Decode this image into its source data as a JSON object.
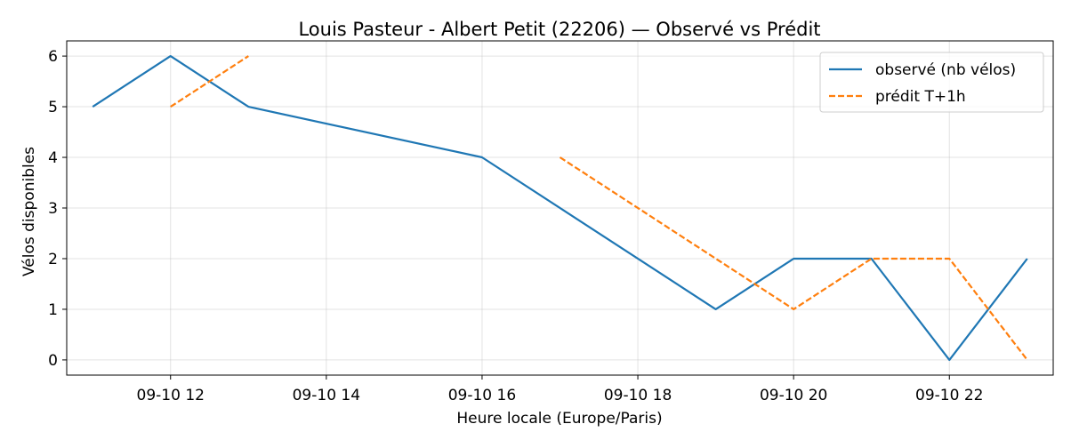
{
  "chart_data": {
    "type": "line",
    "title": "Louis Pasteur - Albert Petit (22206) — Observé vs Prédit",
    "xlabel": "Heure locale (Europe/Paris)",
    "ylabel": "Vélos disponibles",
    "x_ticks": [
      "09-10 12",
      "09-10 14",
      "09-10 16",
      "09-10 18",
      "09-10 20",
      "09-10 22"
    ],
    "y_ticks": [
      "0",
      "1",
      "2",
      "3",
      "4",
      "5",
      "6"
    ],
    "xlim": [
      "2024-09-10 10:40",
      "2024-09-10 23:20"
    ],
    "ylim": [
      -0.3,
      6.3
    ],
    "grid": true,
    "legend_position": "top-right",
    "series": [
      {
        "name": "observé (nb vélos)",
        "style": "solid",
        "color": "#1f77b4",
        "points": [
          {
            "x": "2024-09-10 11:00",
            "y": 5
          },
          {
            "x": "2024-09-10 12:00",
            "y": 6
          },
          {
            "x": "2024-09-10 13:00",
            "y": 5
          },
          {
            "x": "2024-09-10 16:00",
            "y": 4
          },
          {
            "x": "2024-09-10 19:00",
            "y": 1
          },
          {
            "x": "2024-09-10 20:00",
            "y": 2
          },
          {
            "x": "2024-09-10 21:00",
            "y": 2
          },
          {
            "x": "2024-09-10 22:00",
            "y": 0
          },
          {
            "x": "2024-09-10 23:00",
            "y": 2
          }
        ]
      },
      {
        "name": "prédit T+1h",
        "style": "dashed",
        "color": "#ff7f0e",
        "segments": [
          [
            {
              "x": "2024-09-10 12:00",
              "y": 5
            },
            {
              "x": "2024-09-10 13:00",
              "y": 6
            }
          ],
          [
            {
              "x": "2024-09-10 17:00",
              "y": 4
            },
            {
              "x": "2024-09-10 20:00",
              "y": 1
            },
            {
              "x": "2024-09-10 21:00",
              "y": 2
            },
            {
              "x": "2024-09-10 22:00",
              "y": 2
            },
            {
              "x": "2024-09-10 23:00",
              "y": 0
            }
          ]
        ]
      }
    ]
  }
}
